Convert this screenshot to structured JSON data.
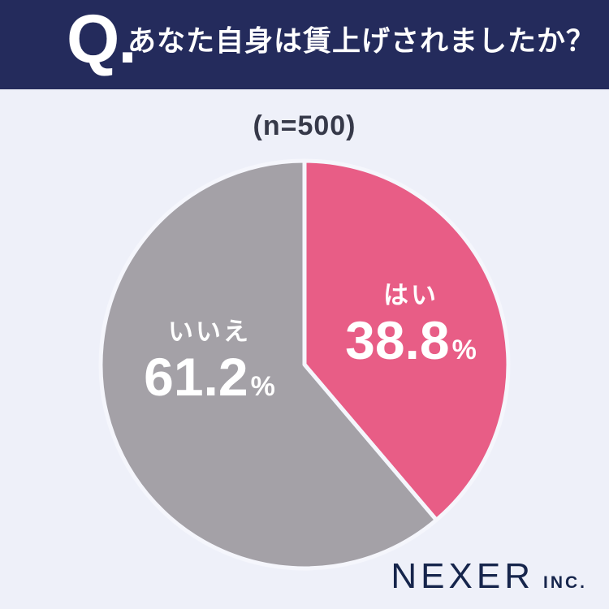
{
  "header": {
    "q_label": "Q.",
    "question": "あなた自身は賃上げされましたか？",
    "bg_color": "#242b5c",
    "text_color": "#ffffff"
  },
  "chart_data": {
    "type": "pie",
    "title": "(n=500)",
    "categories": [
      "はい",
      "いいえ"
    ],
    "values": [
      38.8,
      61.2
    ],
    "unit": "%",
    "colors": [
      "#e85d86",
      "#a4a1a7"
    ],
    "start_angle": "12-oclock",
    "direction": "clockwise",
    "divider_color": "#f5f6fc",
    "label_text_color": "#ffffff"
  },
  "footer": {
    "brand": "NEXER",
    "brand_suffix": "INC."
  },
  "colors": {
    "page_background": "#eef0f9",
    "banner_navy": "#242b5c",
    "sample_text": "#363949",
    "logo_navy": "#16254c"
  }
}
